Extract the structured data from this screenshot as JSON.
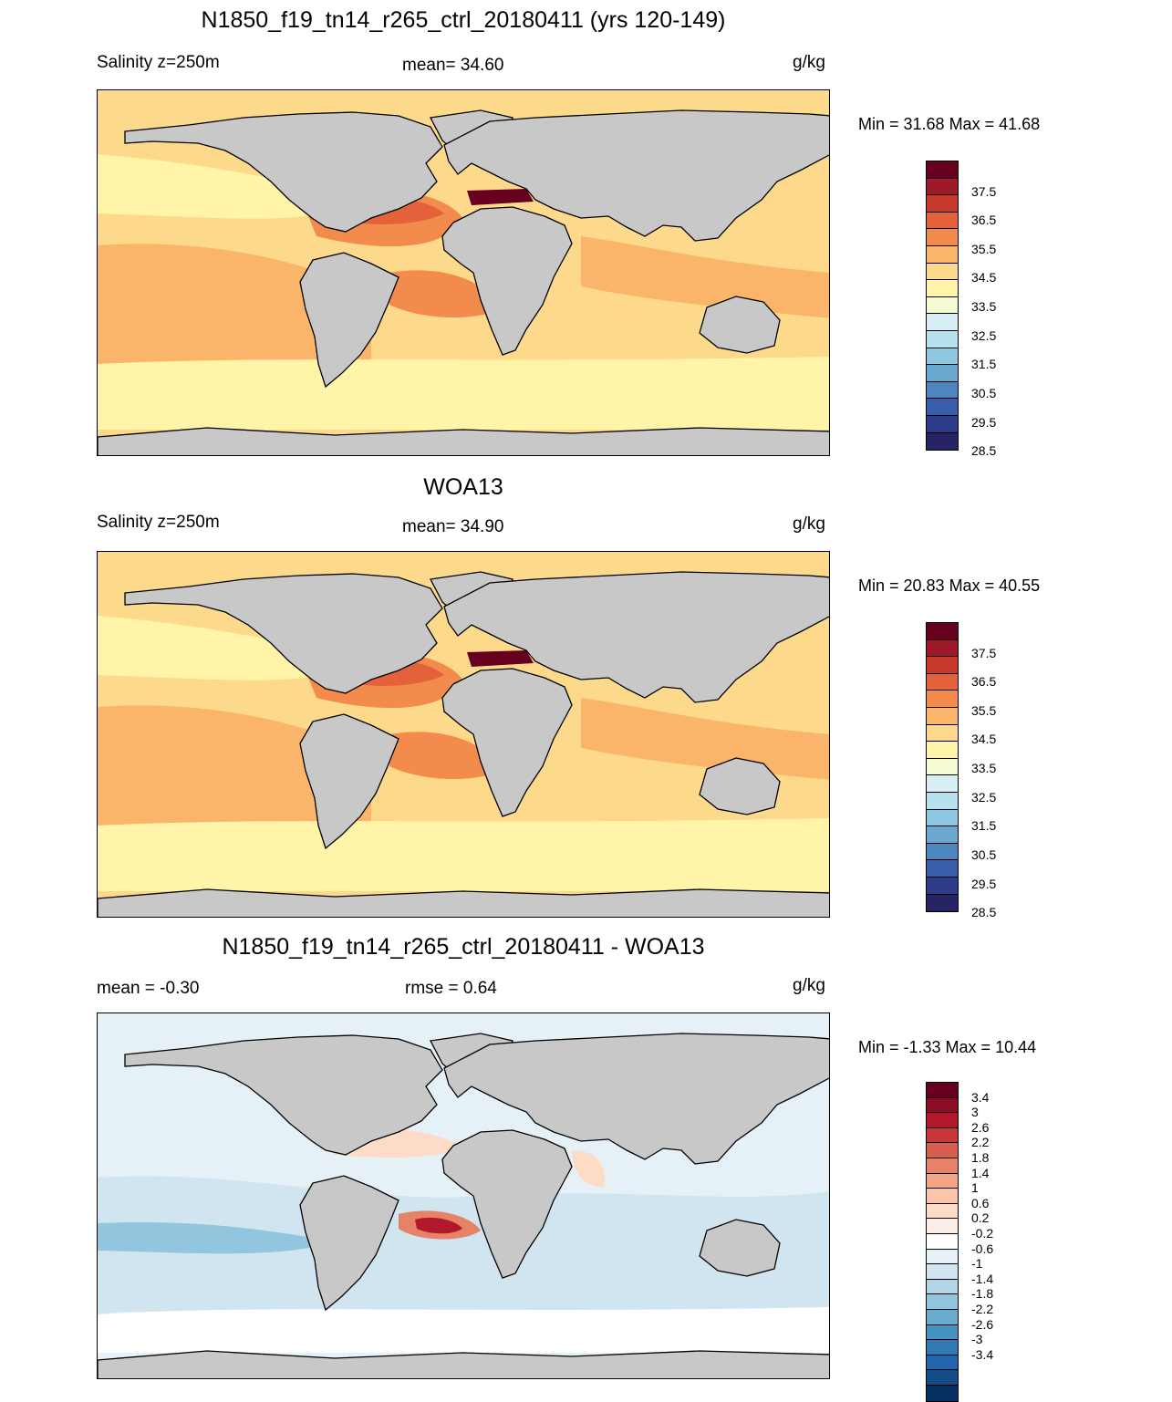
{
  "chart_data": [
    {
      "type": "heatmap",
      "title": "N1850_f19_tn14_r265_ctrl_20180411 (yrs 120-149)",
      "left_label": "Salinity z=250m",
      "center_label": "mean=  34.60",
      "right_label": "g/kg",
      "minmax": "Min =  31.68 Max =  41.68",
      "mean": 34.6,
      "min": 31.68,
      "max": 41.68,
      "colorbar": {
        "labels": [
          "37.5",
          "36.5",
          "35.5",
          "34.5",
          "33.5",
          "32.5",
          "31.5",
          "30.5",
          "29.5",
          "28.5"
        ],
        "colors": [
          "#67001f",
          "#9e1a2b",
          "#c63a2c",
          "#e3623c",
          "#f28b4b",
          "#fbb56b",
          "#fdd98b",
          "#fff4a8",
          "#f4fbd2",
          "#d8eff5",
          "#b5e2ee",
          "#8fc8e0",
          "#6aa8d0",
          "#4d85bf",
          "#3a5da9",
          "#2f3c8a",
          "#272466"
        ]
      }
    },
    {
      "type": "heatmap",
      "title": "WOA13",
      "left_label": "Salinity z=250m",
      "center_label": "mean=  34.90",
      "right_label": "g/kg",
      "minmax": "Min =  20.83 Max =  40.55",
      "mean": 34.9,
      "min": 20.83,
      "max": 40.55,
      "colorbar": {
        "labels": [
          "37.5",
          "36.5",
          "35.5",
          "34.5",
          "33.5",
          "32.5",
          "31.5",
          "30.5",
          "29.5",
          "28.5"
        ],
        "colors": [
          "#67001f",
          "#9e1a2b",
          "#c63a2c",
          "#e3623c",
          "#f28b4b",
          "#fbb56b",
          "#fdd98b",
          "#fff4a8",
          "#f4fbd2",
          "#d8eff5",
          "#b5e2ee",
          "#8fc8e0",
          "#6aa8d0",
          "#4d85bf",
          "#3a5da9",
          "#2f3c8a",
          "#272466"
        ]
      }
    },
    {
      "type": "heatmap",
      "title": "N1850_f19_tn14_r265_ctrl_20180411 - WOA13",
      "left_label": "mean =  -0.30",
      "center_label": "rmse =   0.64",
      "right_label": "g/kg",
      "minmax": "Min =  -1.33 Max =  10.44",
      "mean": -0.3,
      "rmse": 0.64,
      "min": -1.33,
      "max": 10.44,
      "colorbar": {
        "labels": [
          "3.4",
          "3",
          "2.6",
          "2.2",
          "1.8",
          "1.4",
          "1",
          "0.6",
          "0.2",
          "-0.2",
          "-0.6",
          "-1",
          "-1.4",
          "-1.8",
          "-2.2",
          "-2.6",
          "-3",
          "-3.4"
        ],
        "colors": [
          "#67001f",
          "#8c0c25",
          "#b2182b",
          "#c8363a",
          "#d6604d",
          "#e58267",
          "#f4a582",
          "#f9c5ab",
          "#fddbc7",
          "#fbeee6",
          "#ffffff",
          "#e6f1f7",
          "#d1e5f0",
          "#b2d5e8",
          "#92c5de",
          "#6aacd0",
          "#4393c3",
          "#2f79b5",
          "#2166ac",
          "#134c87",
          "#053061"
        ]
      }
    }
  ],
  "colors": {
    "land": "#c8c8c8",
    "coast": "#000000"
  }
}
